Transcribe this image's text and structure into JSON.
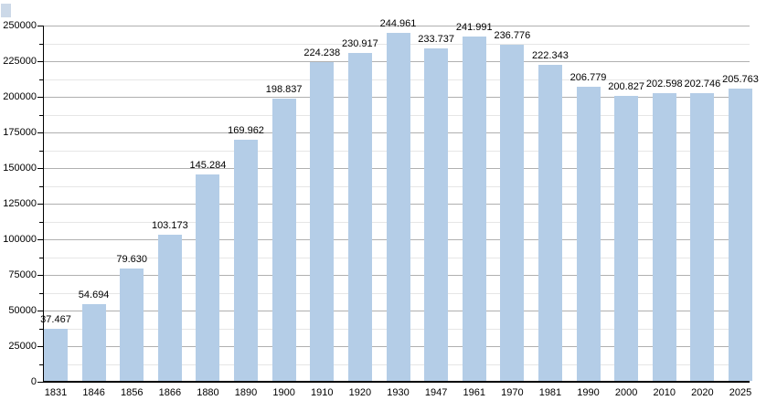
{
  "page": {
    "background": "#ffffff"
  },
  "decor": {
    "corner_swatch_color": "#ccd9e8"
  },
  "chart_data": {
    "type": "bar",
    "title": "",
    "xlabel": "",
    "ylabel": "",
    "categories": [
      "1831",
      "1846",
      "1856",
      "1866",
      "1880",
      "1890",
      "1900",
      "1910",
      "1920",
      "1930",
      "1947",
      "1961",
      "1970",
      "1981",
      "1990",
      "2000",
      "2010",
      "2020",
      "2025"
    ],
    "values": [
      37467,
      54694,
      79630,
      103173,
      145284,
      169962,
      198837,
      224238,
      230917,
      244961,
      233737,
      241991,
      236776,
      222343,
      206779,
      200827,
      202598,
      202746,
      205763
    ],
    "value_labels": [
      "37.467",
      "54.694",
      "79.630",
      "103.173",
      "145.284",
      "169.962",
      "198.837",
      "224.238",
      "230.917",
      "244.961",
      "233.737",
      "241.991",
      "236.776",
      "222.343",
      "206.779",
      "200.827",
      "202.598",
      "202.746",
      "205.763"
    ],
    "ylim": [
      0,
      250000
    ],
    "y_major_step": 25000,
    "y_minor_step": 12500,
    "y_tick_labels": [
      "0",
      "25000",
      "50000",
      "75000",
      "100000",
      "125000",
      "150000",
      "175000",
      "200000",
      "225000",
      "250000"
    ],
    "grid": "major-and-minor-horizontal",
    "legend_position": "none",
    "bar_color": "#b4cde7",
    "major_grid_color": "#b0b0b0",
    "minor_grid_color": "#e6e6e6",
    "axis_color": "#000000",
    "text_color": "#000000"
  }
}
